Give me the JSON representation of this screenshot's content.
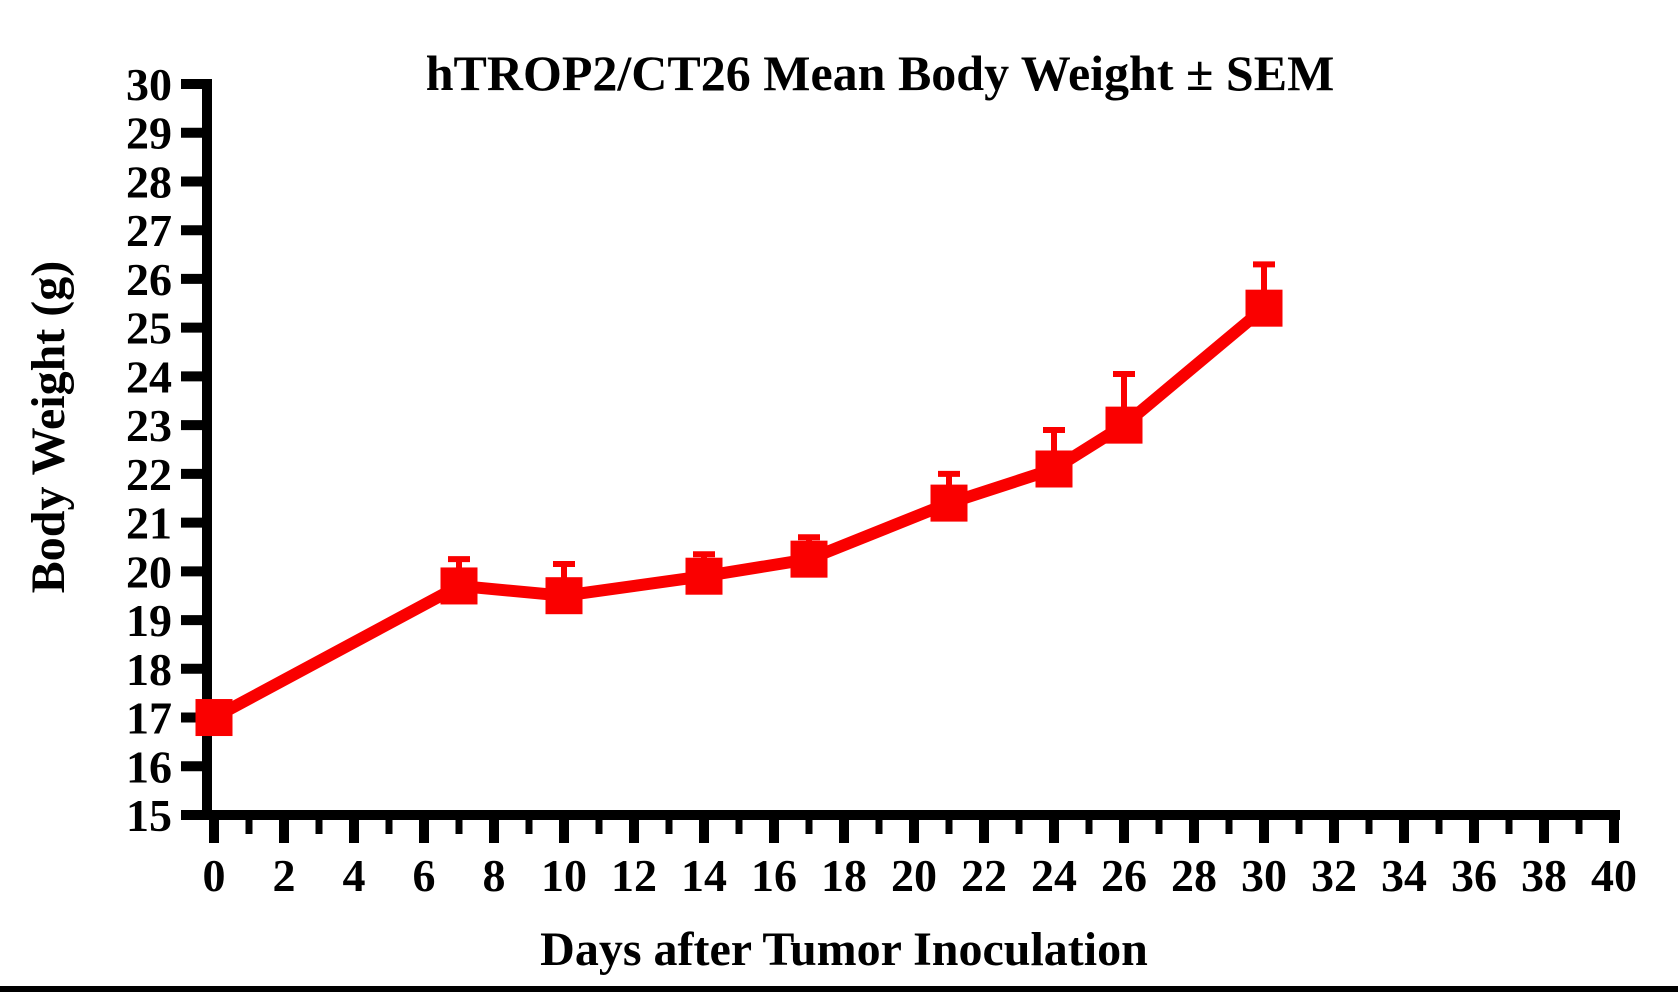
{
  "page": {
    "background": "#ffffff",
    "axis_color": "#000000"
  },
  "chart_data": {
    "type": "line",
    "title": "hTROP2/CT26 Mean Body Weight ± SEM",
    "xlabel": "Days after Tumor Inoculation",
    "ylabel": "Body Weight (g)",
    "xlim": [
      0,
      40
    ],
    "ylim": [
      15,
      30
    ],
    "xticks_major": [
      0,
      2,
      4,
      6,
      8,
      10,
      12,
      14,
      16,
      18,
      20,
      22,
      24,
      26,
      28,
      30,
      32,
      34,
      36,
      38,
      40
    ],
    "xticks_minor": [
      1,
      3,
      5,
      7,
      9,
      11,
      13,
      15,
      17,
      19,
      21,
      23,
      25,
      27,
      29,
      31,
      33,
      35,
      37,
      39
    ],
    "yticks": [
      15,
      16,
      17,
      18,
      19,
      20,
      21,
      22,
      23,
      24,
      25,
      26,
      27,
      28,
      29,
      30
    ],
    "grid": false,
    "legend": "none",
    "error_bars": "upper-only",
    "series": [
      {
        "name": "hTROP2/CT26 mean body weight",
        "color": "#fa0000",
        "marker": "square",
        "x": [
          0,
          7,
          10,
          14,
          17,
          21,
          24,
          26,
          30
        ],
        "y": [
          17.0,
          19.7,
          19.5,
          19.9,
          20.25,
          21.4,
          22.1,
          23.0,
          25.4
        ],
        "sem_upper": [
          0,
          0.55,
          0.65,
          0.45,
          0.45,
          0.6,
          0.8,
          1.05,
          0.9
        ]
      }
    ]
  }
}
